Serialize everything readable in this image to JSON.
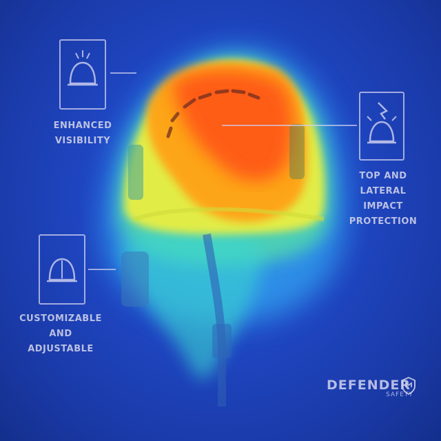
{
  "features": [
    {
      "label_line1": "ENHANCED",
      "label_line2": "VISIBILITY",
      "icon": "helmet-visibility-icon"
    },
    {
      "label_line1": "TOP AND LATERAL",
      "label_line2": "IMPACT PROTECTION",
      "icon": "helmet-impact-icon"
    },
    {
      "label_line1": "CUSTOMIZABLE AND",
      "label_line2": "ADJUSTABLE",
      "icon": "helmet-adjust-icon"
    }
  ],
  "brand": {
    "name": "DEFENDER",
    "sub": "SAFETY",
    "icon": "shield-icon"
  },
  "colors": {
    "background": "#1f47c4",
    "heat_hot": "#ff3a10",
    "heat_warm": "#ffb21a",
    "heat_mid": "#f6ef3a",
    "line": "#d2d2f0"
  }
}
